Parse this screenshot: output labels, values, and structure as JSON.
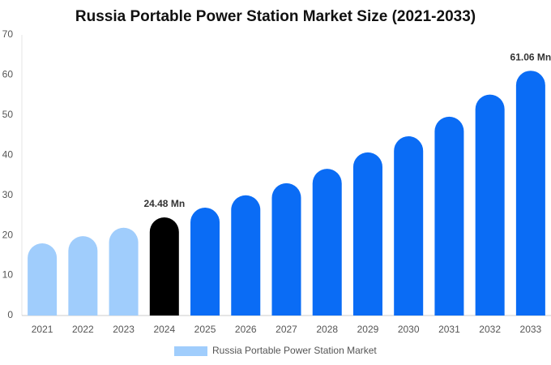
{
  "chart_data": {
    "type": "bar",
    "title": "Russia Portable Power Station Market Size (2021-2033)",
    "categories": [
      "2021",
      "2022",
      "2023",
      "2024",
      "2025",
      "2026",
      "2027",
      "2028",
      "2029",
      "2030",
      "2031",
      "2032",
      "2033"
    ],
    "series": [
      {
        "name": "Russia Portable Power Station Market",
        "color": "#a0cdfc",
        "values": [
          18.0,
          19.8,
          21.9,
          24.48,
          26.9,
          30.0,
          33.0,
          36.6,
          40.7,
          44.7,
          49.6,
          55.1,
          61.06
        ],
        "value_labels": [
          null,
          null,
          null,
          "24.48 Mn",
          null,
          null,
          null,
          null,
          null,
          null,
          null,
          null,
          "61.06 Mn"
        ],
        "colors": [
          "#a0cdfc",
          "#a0cdfc",
          "#a0cdfc",
          "#000000",
          "#0a6cf5",
          "#0a6cf5",
          "#0a6cf5",
          "#0a6cf5",
          "#0a6cf5",
          "#0a6cf5",
          "#0a6cf5",
          "#0a6cf5",
          "#0a6cf5"
        ]
      }
    ],
    "ylim": [
      0,
      70
    ],
    "yticks": [
      0,
      10,
      20,
      30,
      40,
      50,
      60,
      70
    ],
    "grid": false
  }
}
